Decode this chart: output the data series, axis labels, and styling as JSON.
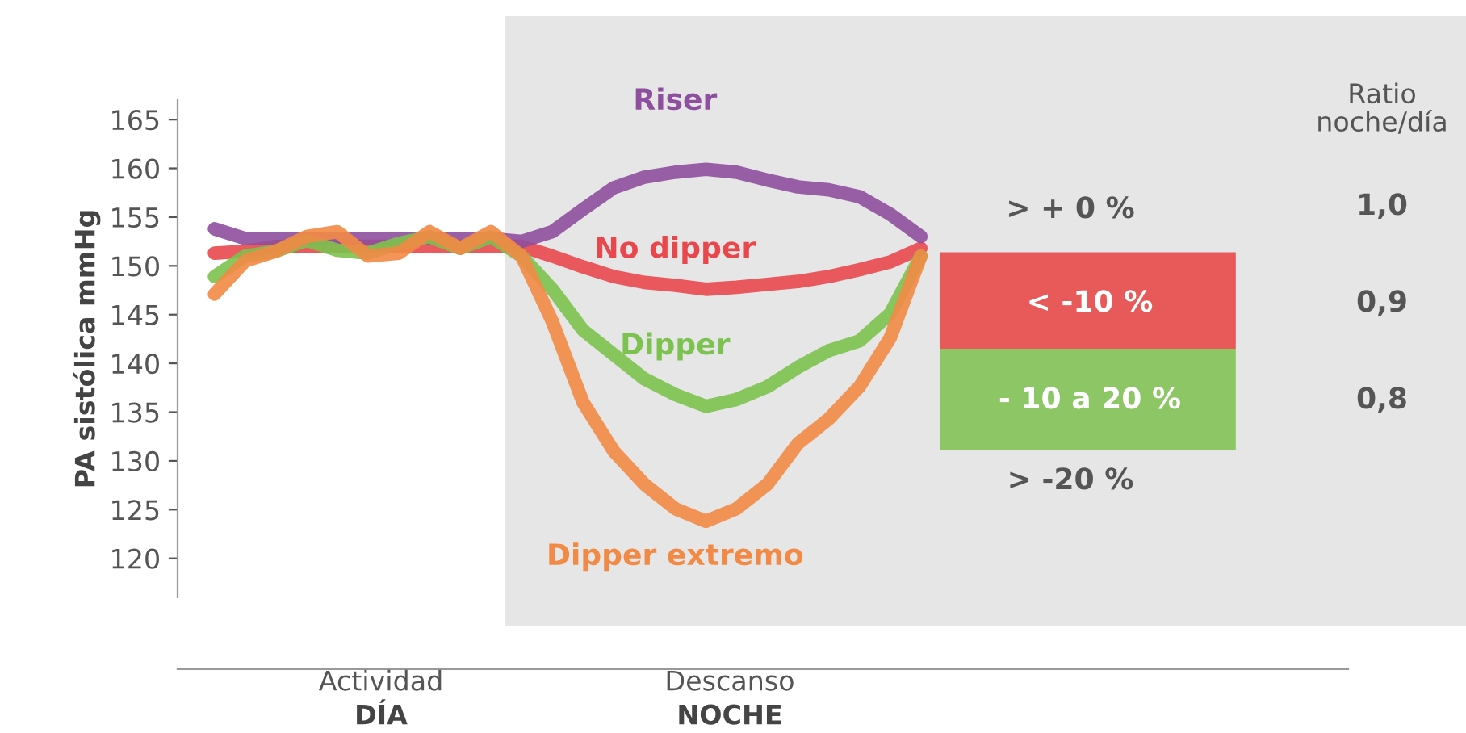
{
  "chart_data": {
    "type": "line",
    "ylabel": "PA sistólica mmHg",
    "categories": [
      null,
      null,
      null,
      null,
      null,
      null,
      null,
      null,
      null,
      null,
      null,
      null,
      null,
      null,
      null,
      null,
      null,
      null,
      null,
      null,
      null,
      null,
      null,
      null
    ],
    "series": [
      {
        "name": "Riser",
        "color": "#8e4f9e",
        "values": [
          153.8,
          152.8,
          152.8,
          152.8,
          152.8,
          152.8,
          152.8,
          152.8,
          152.8,
          152.8,
          152.5,
          153.5,
          155.8,
          158,
          159.1,
          159.6,
          159.9,
          159.6,
          158.8,
          158.1,
          157.8,
          157.1,
          155.3,
          153
        ]
      },
      {
        "name": "No dipper",
        "color": "#e8484c",
        "values": [
          151.3,
          151.5,
          152,
          152,
          152,
          152,
          152,
          152,
          152,
          152,
          152,
          151,
          149.9,
          148.9,
          148.3,
          148,
          147.6,
          147.8,
          148.1,
          148.4,
          148.9,
          149.6,
          150.4,
          151.8
        ]
      },
      {
        "name": "Dipper",
        "color": "#7cc24e",
        "values": [
          148.9,
          151,
          151.5,
          152.6,
          151.6,
          151.3,
          152.3,
          153,
          151.8,
          153,
          151,
          147.6,
          143.4,
          140.9,
          138.4,
          136.8,
          135.6,
          136.3,
          137.6,
          139.6,
          141.3,
          142.3,
          145.1,
          151
        ]
      },
      {
        "name": "Dipper extremo",
        "color": "#f28a45",
        "values": [
          147.1,
          150.5,
          151.5,
          153,
          153.5,
          151,
          151.3,
          153.5,
          151.8,
          153.5,
          151,
          144.3,
          136,
          131,
          127.6,
          125.1,
          123.8,
          125.1,
          127.6,
          131.8,
          134.3,
          137.6,
          142.6,
          151
        ]
      }
    ],
    "ylim": [
      116,
      167
    ],
    "yticks": [
      120,
      125,
      130,
      135,
      140,
      145,
      150,
      155,
      160,
      165
    ],
    "tick_labels": "y",
    "grid": false,
    "legend": false,
    "annotations": [
      "> + 0 %",
      "> -20 %",
      "< -10 %",
      "- 10 a 20 %",
      "Ratio\nnoche/día",
      "1,0",
      "0,9",
      "0,8",
      "Actividad",
      "DÍA",
      "Descanso",
      "NOCHE"
    ]
  }
}
